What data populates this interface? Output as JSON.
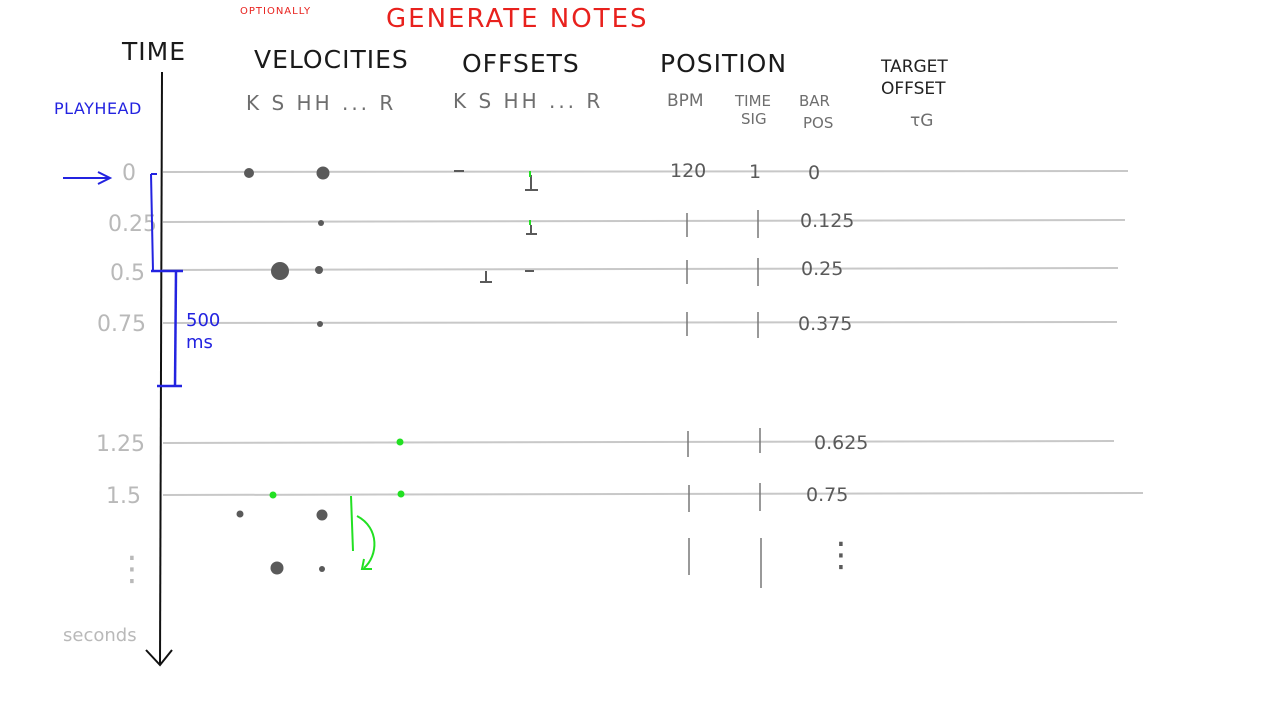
{
  "header": {
    "title": "GENERATE NOTES",
    "optional_note": "OPTIONALLY"
  },
  "columns": {
    "time": "TIME",
    "velocities": "VELOCITIES",
    "offsets": "OFFSETS",
    "position": "POSITION",
    "target_line1": "TARGET",
    "target_line2": "OFFSET",
    "target_symbol": "τG"
  },
  "subheaders": {
    "velocity_tracks": "K S HH ... R",
    "offset_tracks": "K S HH ... R",
    "bpm": "BPM",
    "time_sig_line1": "TIME",
    "time_sig_line2": "SIG",
    "bar_pos_line1": "BAR",
    "bar_pos_line2": "POS"
  },
  "playhead": {
    "label": "PLAYHEAD"
  },
  "interval": {
    "line1": "500",
    "line2": "ms"
  },
  "time_axis": {
    "unit": "seconds",
    "ticks": [
      "0",
      "0.25",
      "0.5",
      "0.75",
      "1.25",
      "1.5"
    ],
    "continuation": "⋮"
  },
  "position_values": {
    "bpm": "120",
    "time_sig": "1",
    "bar_positions": [
      "0",
      "0.125",
      "0.25",
      "0.375",
      "0.625",
      "0.75"
    ],
    "bar_continuation": "⋮"
  },
  "colors": {
    "title": "#e8211d",
    "playhead": "#2323e0",
    "grid": "#c8c8c8",
    "note": "#5a5a5a",
    "highlight": "#22e022"
  }
}
